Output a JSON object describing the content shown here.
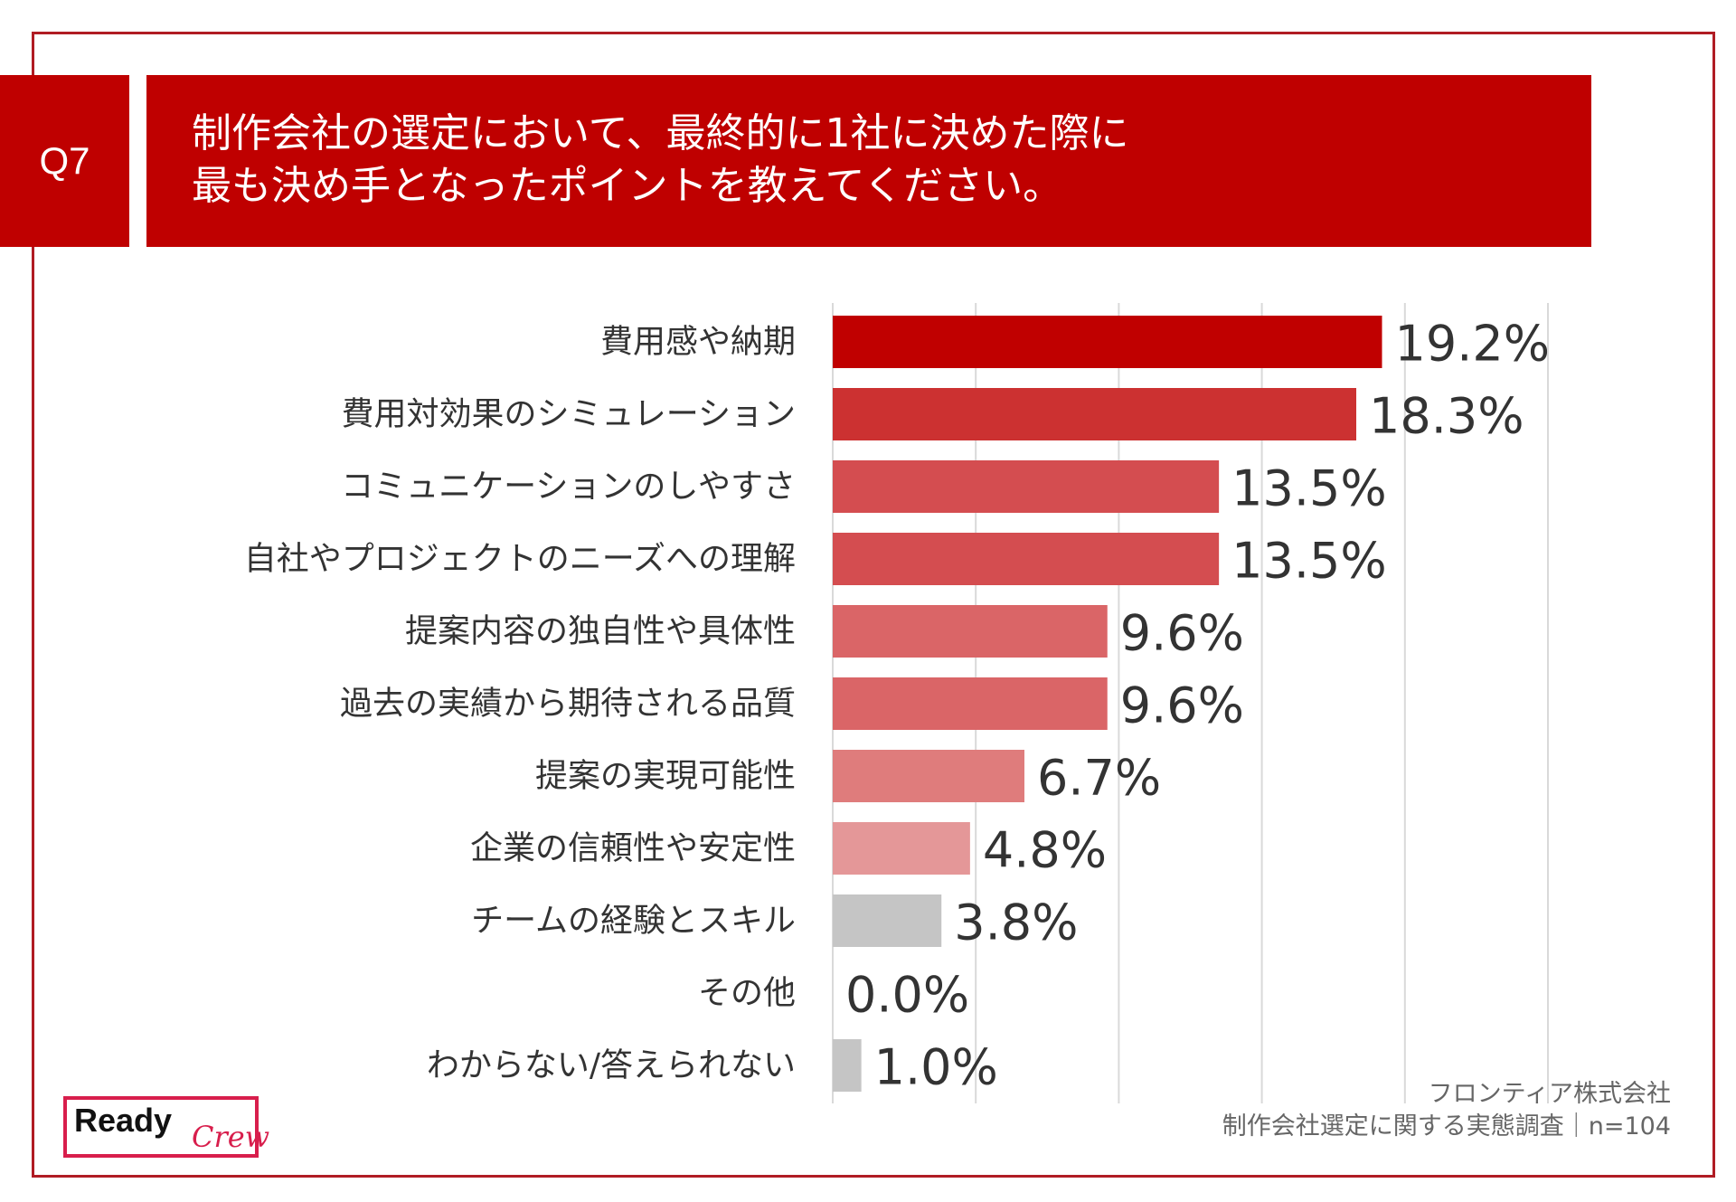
{
  "question": {
    "label": "Q7",
    "title_line1": "制作会社の選定において、最終的に1社に決めた際に",
    "title_line2": "最も決め手となったポイントを教えてください。"
  },
  "chart_data": {
    "type": "bar",
    "orientation": "horizontal",
    "categories": [
      "費用感や納期",
      "費用対効果のシミュレーション",
      "コミュニケーションのしやすさ",
      "自社やプロジェクトのニーズへの理解",
      "提案内容の独自性や具体性",
      "過去の実績から期待される品質",
      "提案の実現可能性",
      "企業の信頼性や安定性",
      "チームの経験とスキル",
      "その他",
      "わからない/答えられない"
    ],
    "values": [
      19.2,
      18.3,
      13.5,
      13.5,
      9.6,
      9.6,
      6.7,
      4.8,
      3.8,
      0.0,
      1.0
    ],
    "value_labels": [
      "19.2%",
      "18.3%",
      "13.5%",
      "13.5%",
      "9.6%",
      "9.6%",
      "6.7%",
      "4.8%",
      "3.8%",
      "0.0%",
      "1.0%"
    ],
    "bar_colors": [
      "#c00000",
      "#cc3131",
      "#d44d50",
      "#d44d50",
      "#da6567",
      "#da6567",
      "#df7c7c",
      "#e49798",
      "#c5c5c5",
      "#c5c5c5",
      "#c5c5c5"
    ],
    "xlim": [
      0,
      25
    ],
    "grid": true,
    "gridline_values": [
      0,
      5,
      10,
      15,
      20,
      25
    ]
  },
  "source": {
    "line1": "フロンティア株式会社",
    "line2": "制作会社選定に関する実態調査｜n=104"
  },
  "logo": {
    "word1": "Ready",
    "word2": "Crew",
    "color": "#d81e4c"
  }
}
